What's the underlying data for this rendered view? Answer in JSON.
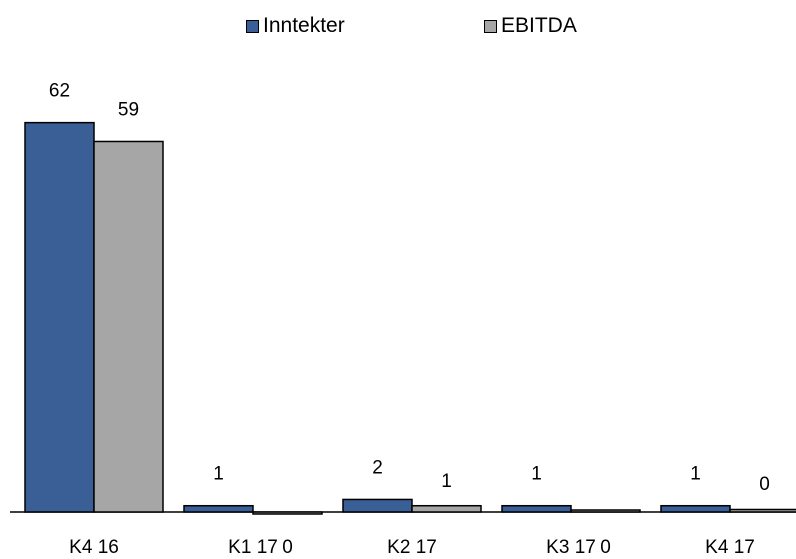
{
  "chart_data": {
    "type": "bar",
    "categories": [
      "K4 16",
      "K1 17",
      "K2 17",
      "K3 17",
      "K4 17"
    ],
    "series": [
      {
        "name": "Inntekter",
        "values": [
          62,
          1,
          2,
          1,
          1
        ],
        "color": "#3a5f96"
      },
      {
        "name": "EBITDA",
        "values": [
          59,
          -0.2,
          1,
          0.2,
          0.4
        ],
        "color": "#a6a6a6"
      }
    ],
    "data_labels": [
      [
        "62",
        "1",
        "2",
        "1",
        "1"
      ],
      [
        "59",
        "0",
        "1",
        "0",
        "0"
      ]
    ],
    "legend_position": "top",
    "grid": false,
    "ylim": [
      -1,
      70
    ]
  }
}
